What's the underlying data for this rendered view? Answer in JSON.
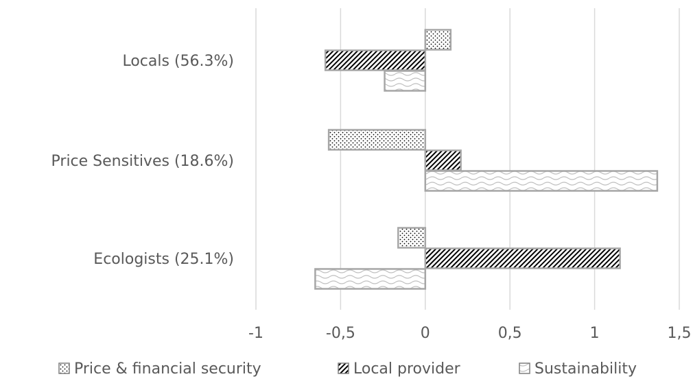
{
  "chart_data": {
    "type": "bar",
    "orientation": "horizontal",
    "categories": [
      "Locals (56.3%)",
      "Price Sensitives (18.6%)",
      "Ecologists (25.1%)"
    ],
    "series": [
      {
        "name": "Price & financial security",
        "values": [
          0.15,
          -0.57,
          -0.16
        ],
        "pattern": "dots"
      },
      {
        "name": "Local provider",
        "values": [
          -0.59,
          0.21,
          1.15
        ],
        "pattern": "diagonal-hatch"
      },
      {
        "name": "Sustainability",
        "values": [
          -0.24,
          1.37,
          -0.65
        ],
        "pattern": "waves"
      }
    ],
    "xlim": [
      -1,
      1.5
    ],
    "xticks": [
      -1,
      -0.5,
      0,
      0.5,
      1,
      1.5
    ],
    "xtick_labels": [
      "-1",
      "-0,5",
      "0",
      "0,5",
      "1",
      "1,5"
    ],
    "grid": "vertical",
    "legend_position": "bottom",
    "colors": {
      "bar_outline": "#a6a6a6",
      "pattern": "#000000",
      "grid": "#d9d9d9",
      "text": "#595959"
    }
  }
}
